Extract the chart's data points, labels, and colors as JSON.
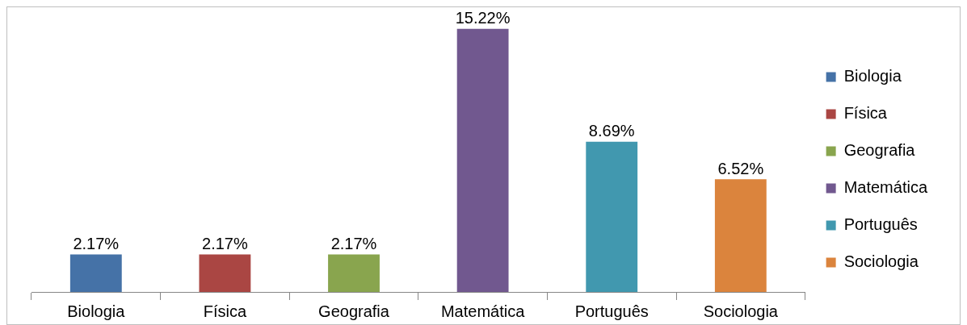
{
  "chart_data": {
    "type": "bar",
    "categories": [
      "Biologia",
      "Física",
      "Geografia",
      "Matemática",
      "Português",
      "Sociologia"
    ],
    "series": [
      {
        "name": "Biologia",
        "color": "#4572a7",
        "values": [
          2.17,
          null,
          null,
          null,
          null,
          null
        ],
        "value_labels": [
          "2.17%",
          null,
          null,
          null,
          null,
          null
        ]
      },
      {
        "name": "Física",
        "color": "#aa4643",
        "values": [
          null,
          2.17,
          null,
          null,
          null,
          null
        ],
        "value_labels": [
          null,
          "2.17%",
          null,
          null,
          null,
          null
        ]
      },
      {
        "name": "Geografia",
        "color": "#89a54e",
        "values": [
          null,
          null,
          2.17,
          null,
          null,
          null
        ],
        "value_labels": [
          null,
          null,
          "2.17%",
          null,
          null,
          null
        ]
      },
      {
        "name": "Matemática",
        "color": "#71588f",
        "values": [
          null,
          null,
          null,
          15.22,
          null,
          null
        ],
        "value_labels": [
          null,
          null,
          null,
          "15.22%",
          null,
          null
        ]
      },
      {
        "name": "Português",
        "color": "#4198af",
        "values": [
          null,
          null,
          null,
          null,
          8.69,
          null
        ],
        "value_labels": [
          null,
          null,
          null,
          null,
          "8.69%",
          null
        ]
      },
      {
        "name": "Sociologia",
        "color": "#db843d",
        "values": [
          null,
          null,
          null,
          null,
          null,
          6.52
        ],
        "value_labels": [
          null,
          null,
          null,
          null,
          null,
          "6.52%"
        ]
      }
    ],
    "legend": "right",
    "grid": false
  }
}
